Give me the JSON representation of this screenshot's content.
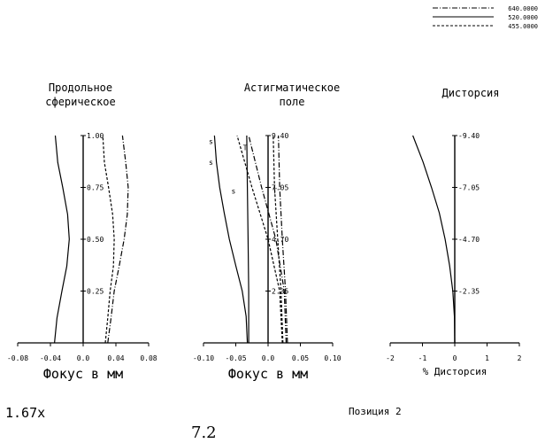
{
  "legend": [
    {
      "label": "640.0000",
      "dash": "6,2,1,2"
    },
    {
      "label": "520.0000",
      "dash": ""
    },
    {
      "label": "455.0000",
      "dash": "3,2"
    }
  ],
  "colors": {
    "ink": "#000000",
    "background": "#ffffff"
  },
  "chart_data": [
    {
      "type": "line",
      "title": "Продольное сферическое",
      "title_lines": [
        "Продольное",
        "сферическое"
      ],
      "xlabel": "Фокус в мм",
      "xlim": [
        -0.08,
        0.08
      ],
      "xticks": [
        "-0.08",
        "-0.04",
        "0.0",
        "0.04",
        "0.08"
      ],
      "ylim": [
        0,
        1
      ],
      "yticks": [
        "0.25",
        "0.50",
        "0.75",
        "1.00"
      ],
      "series": [
        {
          "name": "640.0000",
          "points": [
            [
              0.03,
              0
            ],
            [
              0.034,
              0.12
            ],
            [
              0.038,
              0.25
            ],
            [
              0.044,
              0.37
            ],
            [
              0.05,
              0.5
            ],
            [
              0.054,
              0.62
            ],
            [
              0.055,
              0.75
            ],
            [
              0.052,
              0.87
            ],
            [
              0.048,
              1.0
            ]
          ]
        },
        {
          "name": "520.0000",
          "points": [
            [
              -0.035,
              0
            ],
            [
              -0.032,
              0.12
            ],
            [
              -0.026,
              0.25
            ],
            [
              -0.02,
              0.37
            ],
            [
              -0.017,
              0.5
            ],
            [
              -0.019,
              0.62
            ],
            [
              -0.025,
              0.75
            ],
            [
              -0.031,
              0.87
            ],
            [
              -0.034,
              1.0
            ]
          ]
        },
        {
          "name": "455.0000",
          "points": [
            [
              0.027,
              0
            ],
            [
              0.03,
              0.12
            ],
            [
              0.033,
              0.25
            ],
            [
              0.037,
              0.37
            ],
            [
              0.038,
              0.5
            ],
            [
              0.036,
              0.62
            ],
            [
              0.031,
              0.75
            ],
            [
              0.026,
              0.87
            ],
            [
              0.024,
              1.0
            ]
          ]
        }
      ]
    },
    {
      "type": "line",
      "title": "Астигматическое поле",
      "title_lines": [
        "Астигматическое",
        "поле"
      ],
      "xlabel": "Фокус в мм",
      "xlim": [
        -0.1,
        0.1
      ],
      "xticks": [
        "-0.10",
        "-0.05",
        "0.0",
        "0.05",
        "0.10"
      ],
      "ylim": [
        0,
        9.4
      ],
      "yticks": [
        "2.35",
        "4.70",
        "7.05",
        "9.40"
      ],
      "curve_labels": {
        "sagittal": "s",
        "tangential": "T"
      },
      "series": [
        {
          "name": "520.0000 S",
          "points": [
            [
              -0.032,
              0
            ],
            [
              -0.034,
              1.2
            ],
            [
              -0.04,
              2.35
            ],
            [
              -0.05,
              3.5
            ],
            [
              -0.06,
              4.7
            ],
            [
              -0.068,
              5.9
            ],
            [
              -0.075,
              7.05
            ],
            [
              -0.08,
              8.2
            ],
            [
              -0.083,
              9.4
            ]
          ]
        },
        {
          "name": "520.0000 T",
          "points": [
            [
              -0.03,
              0
            ],
            [
              -0.03,
              2.35
            ],
            [
              -0.031,
              4.7
            ],
            [
              -0.032,
              7.05
            ],
            [
              -0.033,
              9.4
            ]
          ]
        },
        {
          "name": "640.0000 S",
          "points": [
            [
              0.028,
              0
            ],
            [
              0.025,
              2.35
            ],
            [
              0.012,
              4.7
            ],
            [
              -0.01,
              7.05
            ],
            [
              -0.03,
              9.4
            ]
          ]
        },
        {
          "name": "640.0000 T",
          "points": [
            [
              0.03,
              0
            ],
            [
              0.027,
              2.35
            ],
            [
              0.022,
              4.7
            ],
            [
              0.018,
              7.05
            ],
            [
              0.016,
              9.4
            ]
          ]
        },
        {
          "name": "455.0000 S",
          "points": [
            [
              0.022,
              0
            ],
            [
              0.018,
              2.35
            ],
            [
              0.0,
              4.7
            ],
            [
              -0.025,
              7.05
            ],
            [
              -0.048,
              9.4
            ]
          ]
        },
        {
          "name": "455.0000 T",
          "points": [
            [
              0.023,
              0
            ],
            [
              0.02,
              2.35
            ],
            [
              0.015,
              4.7
            ],
            [
              0.01,
              7.05
            ],
            [
              0.008,
              9.4
            ]
          ]
        }
      ]
    },
    {
      "type": "line",
      "title": "Дисторсия",
      "xlabel": "% Дисторсия",
      "xlim": [
        -2,
        2
      ],
      "xticks": [
        "-2",
        "-1",
        "0",
        "1",
        "2"
      ],
      "ylim": [
        0,
        9.4
      ],
      "yticks": [
        "-2.35",
        "-4.70",
        "-7.05",
        "-9.40"
      ],
      "series": [
        {
          "name": "520.0000",
          "points": [
            [
              0,
              0
            ],
            [
              -0.01,
              1.2
            ],
            [
              -0.06,
              2.35
            ],
            [
              -0.16,
              3.5
            ],
            [
              -0.3,
              4.7
            ],
            [
              -0.48,
              5.9
            ],
            [
              -0.72,
              7.05
            ],
            [
              -0.98,
              8.2
            ],
            [
              -1.3,
              9.4
            ]
          ]
        }
      ]
    }
  ],
  "footer": {
    "magnification": "1.67x",
    "position": "Позиция 2",
    "figure_number": "7.2"
  }
}
